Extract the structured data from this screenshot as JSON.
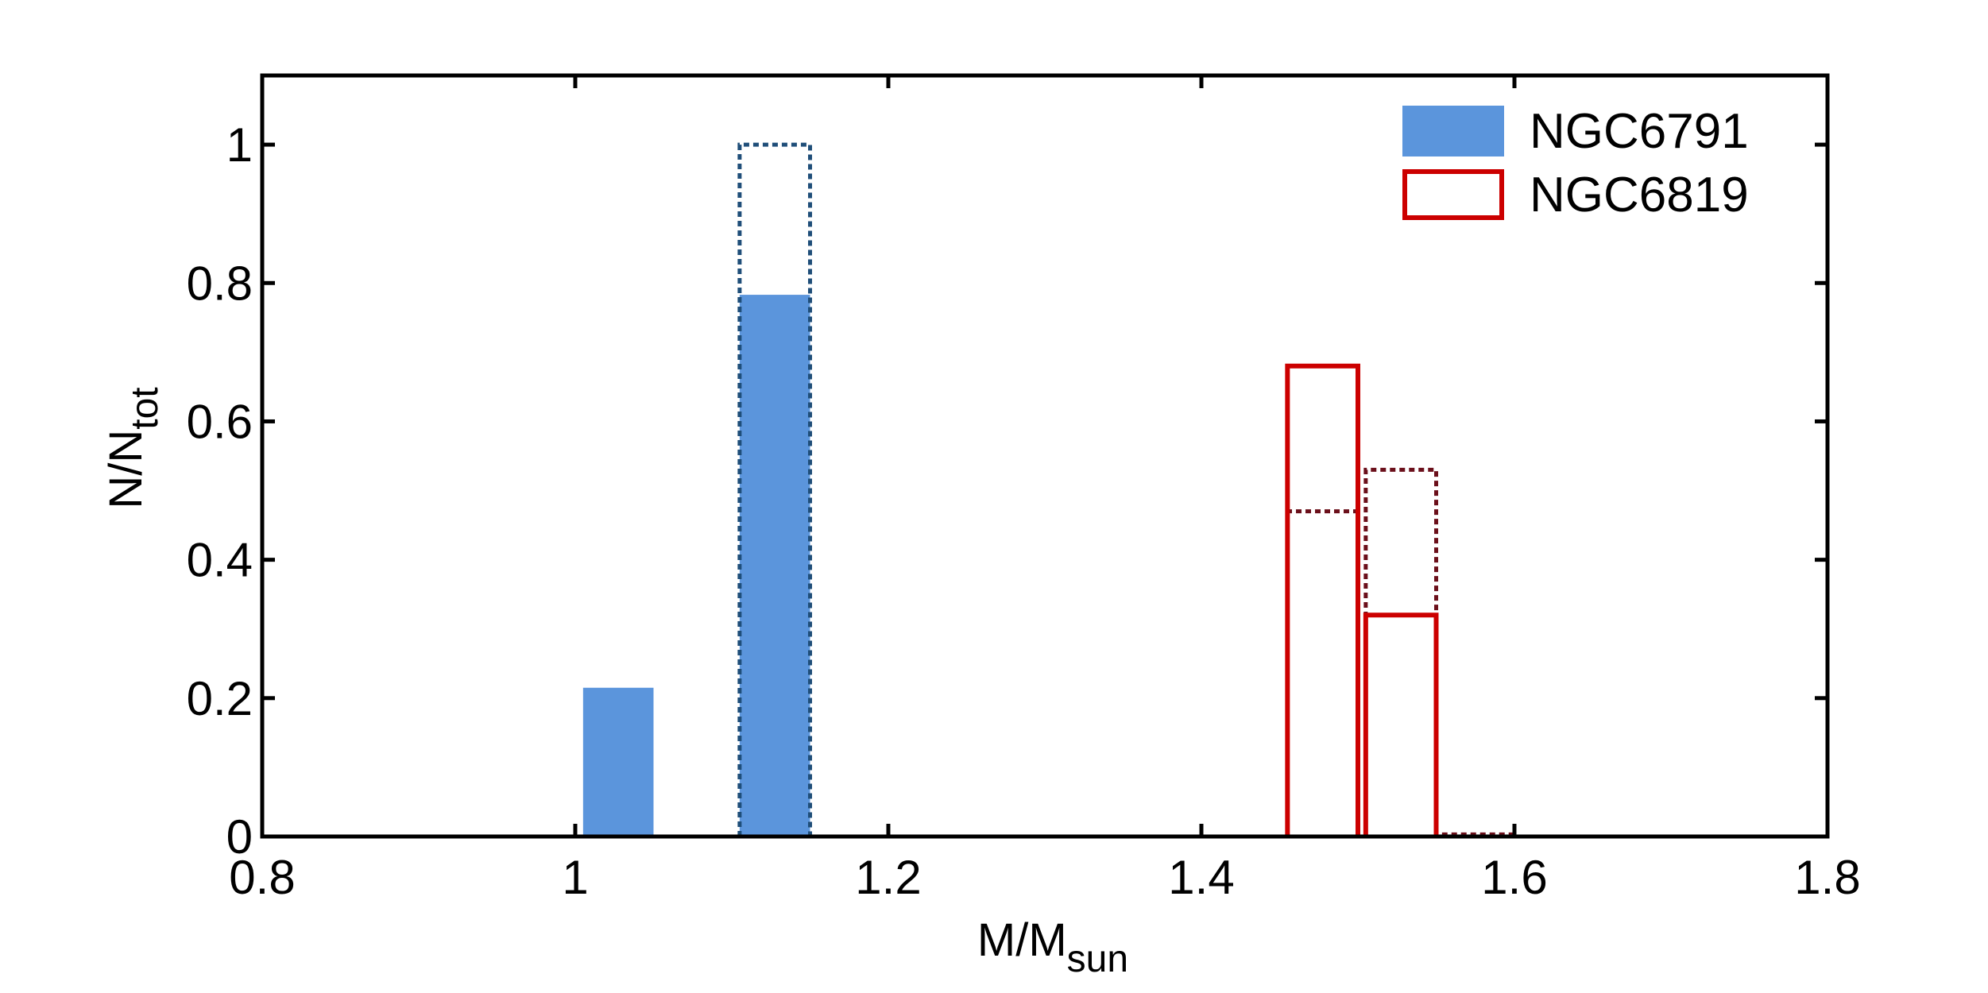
{
  "chart_data": {
    "type": "bar",
    "title": "",
    "xlabel": {
      "main": "M/M",
      "sub": "sun"
    },
    "ylabel": {
      "main": "N/N",
      "sub": "tot"
    },
    "xlim": [
      0.8,
      1.8
    ],
    "ylim": [
      0,
      1.1
    ],
    "xticks": [
      0.8,
      1.0,
      1.2,
      1.4,
      1.6,
      1.8
    ],
    "xtick_labels": [
      "0.8",
      "1",
      "1.2",
      "1.4",
      "1.6",
      "1.8"
    ],
    "yticks": [
      0,
      0.2,
      0.4,
      0.6,
      0.8,
      1.0
    ],
    "ytick_labels": [
      "0",
      "0.2",
      "0.4",
      "0.6",
      "0.8",
      "1"
    ],
    "grid": false,
    "legend_position": "top-right",
    "series": [
      {
        "name": "NGC6791",
        "style": "filled",
        "color": "#5b95dc",
        "in_legend": true,
        "bins": [
          {
            "x0": 1.005,
            "x1": 1.05,
            "value": 0.215
          },
          {
            "x0": 1.105,
            "x1": 1.15,
            "value": 0.783
          }
        ]
      },
      {
        "name": "NGC6791 (dotted)",
        "style": "dotted",
        "color": "#1f4e79",
        "in_legend": false,
        "bins": [
          {
            "x0": 1.105,
            "x1": 1.15,
            "value": 1.0
          }
        ]
      },
      {
        "name": "NGC6819",
        "style": "outline",
        "color": "#cc0000",
        "in_legend": true,
        "bins": [
          {
            "x0": 1.455,
            "x1": 1.5,
            "value": 0.68
          },
          {
            "x0": 1.505,
            "x1": 1.55,
            "value": 0.32
          }
        ]
      },
      {
        "name": "NGC6819 (dotted)",
        "style": "dotted",
        "color": "#6b0f1a",
        "in_legend": false,
        "bins": [
          {
            "x0": 1.455,
            "x1": 1.5,
            "value": 0.47
          },
          {
            "x0": 1.505,
            "x1": 1.55,
            "value": 0.53
          },
          {
            "x0": 1.555,
            "x1": 1.6,
            "value": 0.003
          }
        ]
      }
    ]
  }
}
